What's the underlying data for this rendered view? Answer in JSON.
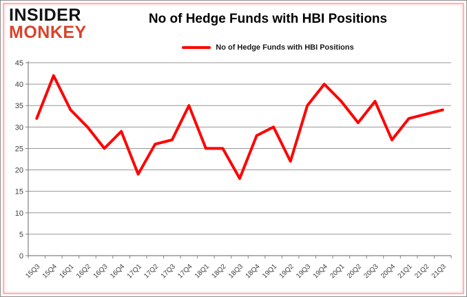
{
  "logo": {
    "line1": "INSIDER",
    "line2": "MONKEY",
    "line1_color": "#111111",
    "line2_color": "#d9432c"
  },
  "title": "No of Hedge Funds with HBI Positions",
  "legend": {
    "label": "No of Hedge Funds with HBI Positions",
    "color": "#ff0000"
  },
  "colors": {
    "line": "#ff0000",
    "gridline": "#969696",
    "axis": "#808080",
    "tick_label": "#3f3f3f",
    "frame_outer": "#8c8c8c",
    "frame_inner": "#ffb3b3",
    "background": "#ffffff"
  },
  "chart_data": {
    "type": "line",
    "title": "No of Hedge Funds with HBI Positions",
    "xlabel": "",
    "ylabel": "",
    "categories": [
      "15Q3",
      "15Q4",
      "16Q1",
      "16Q2",
      "16Q3",
      "16Q4",
      "17Q1",
      "17Q2",
      "17Q3",
      "17Q4",
      "18Q1",
      "18Q2",
      "18Q3",
      "18Q4",
      "19Q1",
      "19Q2",
      "19Q3",
      "19Q4",
      "20Q1",
      "20Q2",
      "20Q3",
      "20Q4",
      "21Q1",
      "21Q2",
      "21Q3"
    ],
    "series": [
      {
        "name": "No of Hedge Funds with HBI Positions",
        "color": "#ff0000",
        "values": [
          32,
          42,
          34,
          30,
          25,
          29,
          19,
          26,
          27,
          35,
          25,
          25,
          18,
          28,
          30,
          22,
          35,
          40,
          36,
          31,
          36,
          27,
          32,
          33,
          34
        ]
      }
    ],
    "ylim": [
      0,
      45
    ],
    "ytick_step": 5,
    "grid": true,
    "legend_position": "top"
  }
}
